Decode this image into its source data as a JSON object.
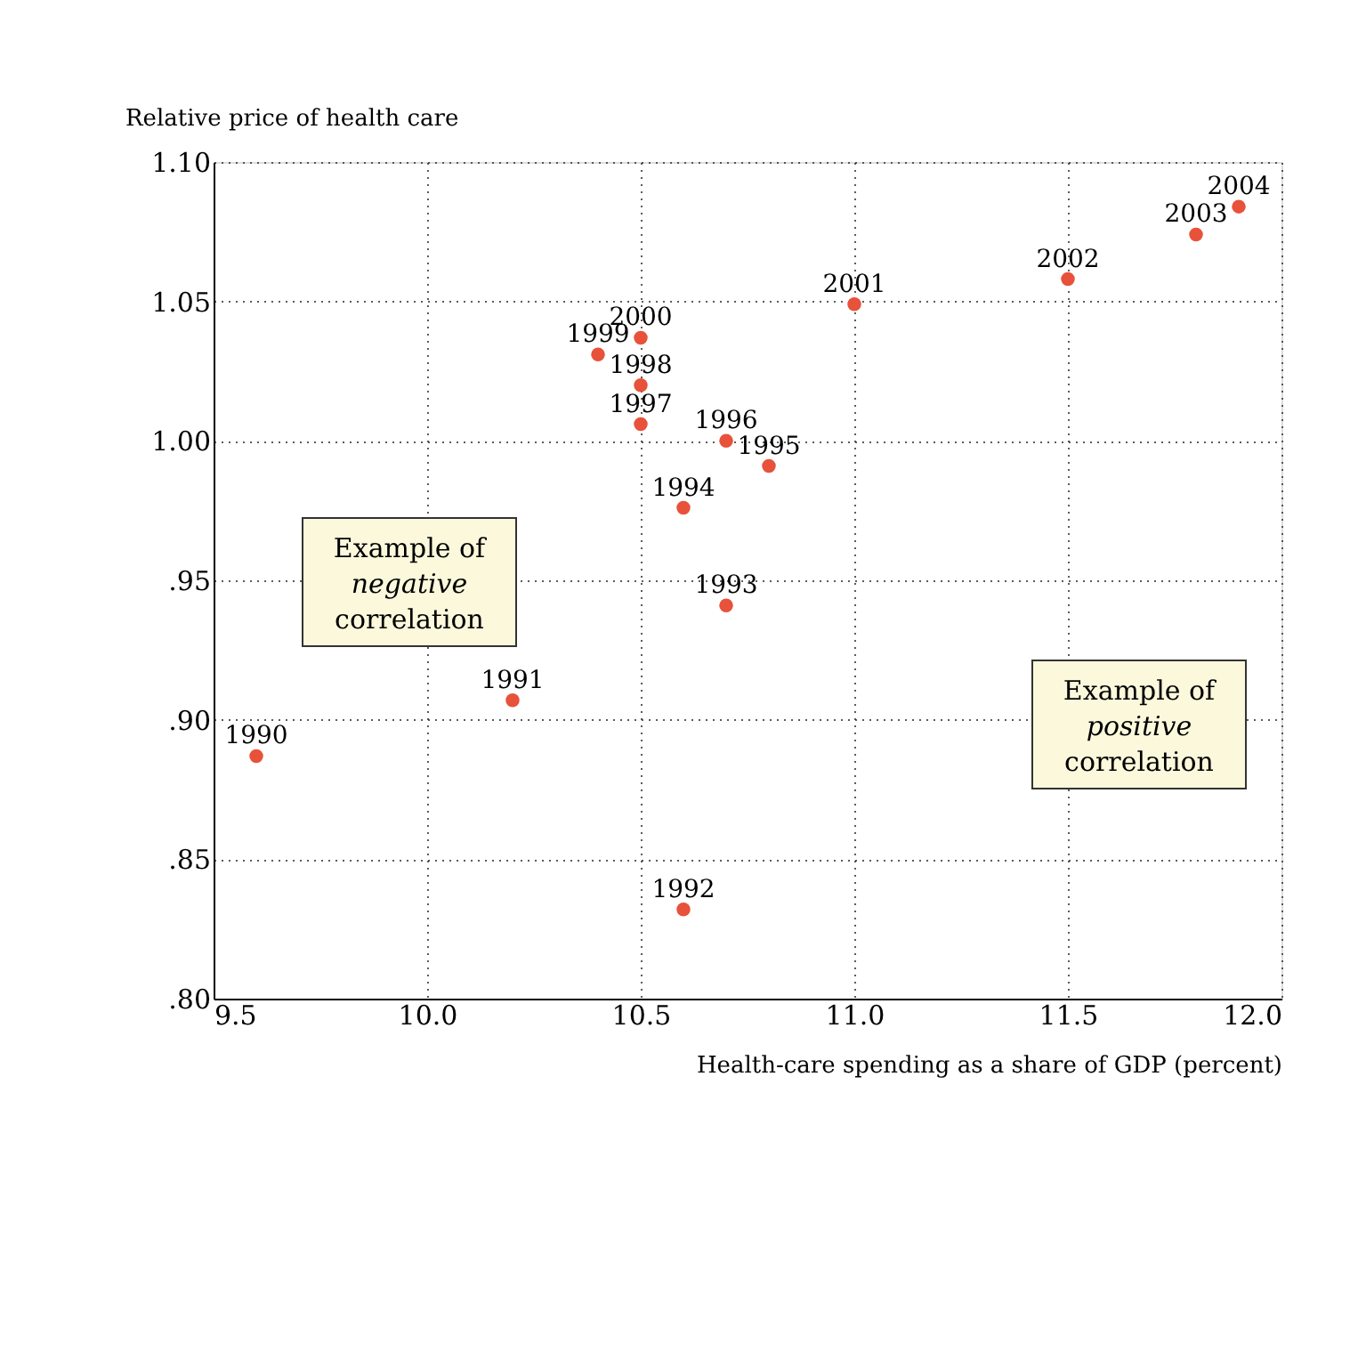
{
  "chart_data": {
    "type": "scatter",
    "xlabel": "Health-care spending as a share of GDP (percent)",
    "ylabel": "Relative price of health care",
    "series": [
      {
        "color": "#e8513a",
        "x": [
          9.6,
          10.2,
          10.6,
          10.7,
          10.6,
          10.8,
          10.7,
          10.5,
          10.5,
          10.4,
          10.5,
          11.0,
          11.5,
          11.8,
          11.9
        ],
        "values": [
          0.887,
          0.907,
          0.832,
          0.941,
          0.976,
          0.991,
          1.0,
          1.006,
          1.02,
          1.031,
          1.037,
          1.049,
          1.058,
          1.074,
          1.084
        ]
      }
    ],
    "xlim": [
      9.5,
      12.0
    ],
    "xticks": [
      9.5,
      {
        "value": 10.0,
        "label": "10.0"
      },
      10.5,
      {
        "value": 11.0,
        "label": "11.0"
      },
      11.5,
      {
        "value": 12.0,
        "label": "12.0"
      }
    ],
    "ylim": [
      0.8,
      1.1
    ],
    "yticks": [
      {
        "value": 0.8,
        "label": ".80"
      },
      {
        "value": 0.85,
        "label": ".85"
      },
      {
        "value": 0.9,
        "label": ".90"
      },
      {
        "value": 0.95,
        "label": ".95"
      },
      {
        "value": 1.0,
        "label": "1.00"
      },
      {
        "value": 1.05,
        "label": "1.05"
      },
      {
        "value": 1.1,
        "label": "1.10"
      }
    ],
    "grid": true,
    "marker": "circle",
    "annotations": [
      {
        "text": "1990",
        "x": 9.6,
        "y": 0.887
      },
      {
        "text": "1991",
        "x": 10.2,
        "y": 0.907
      },
      {
        "text": "1992",
        "x": 10.6,
        "y": 0.832
      },
      {
        "text": "1993",
        "x": 10.7,
        "y": 0.941
      },
      {
        "text": "1994",
        "x": 10.6,
        "y": 0.976
      },
      {
        "text": "1995",
        "x": 10.8,
        "y": 0.991
      },
      {
        "text": "1996",
        "x": 10.7,
        "y": 1.0
      },
      {
        "text": "1997",
        "x": 10.5,
        "y": 1.006
      },
      {
        "text": "1998",
        "x": 10.5,
        "y": 1.02
      },
      {
        "text": "1999",
        "x": 10.4,
        "y": 1.031
      },
      {
        "text": "2000",
        "x": 10.5,
        "y": 1.037
      },
      {
        "text": "2001",
        "x": 11.0,
        "y": 1.049
      },
      {
        "text": "2002",
        "x": 11.5,
        "y": 1.058
      },
      {
        "text": "2003",
        "x": 11.8,
        "y": 1.074
      },
      {
        "text": "2004",
        "x": 11.9,
        "y": 1.084
      },
      "Example of negative correlation",
      "Example of positive correlation"
    ]
  }
}
